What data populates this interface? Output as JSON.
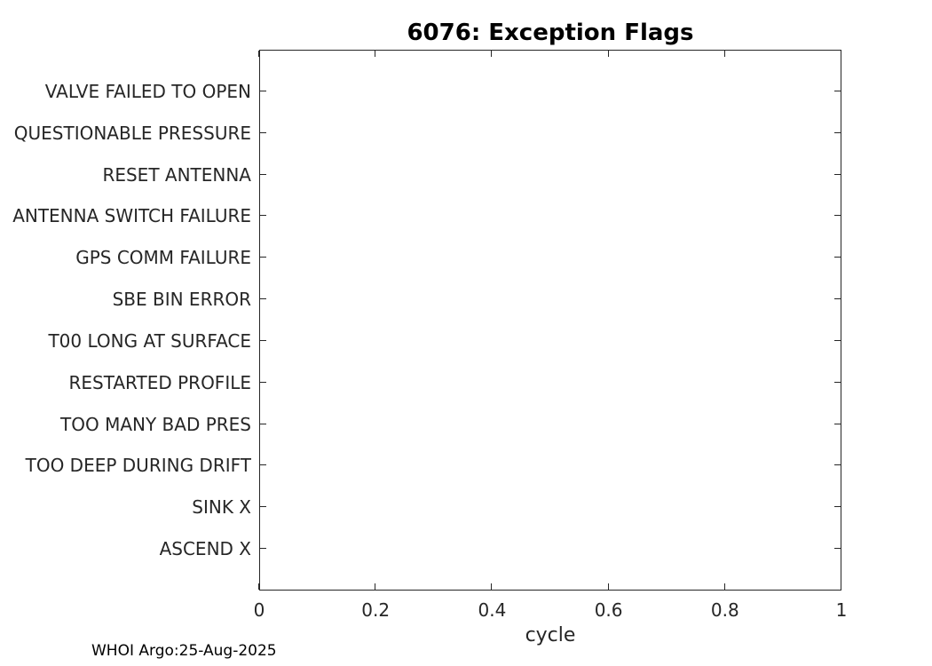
{
  "footer": {
    "credit": "WHOI Argo:25-Aug-2025"
  },
  "chart_data": {
    "type": "scatter",
    "title": "6076: Exception Flags",
    "xlabel": "cycle",
    "ylabel": "",
    "xlim": [
      0,
      1
    ],
    "x_ticks": [
      0,
      0.2,
      0.4,
      0.6,
      0.8,
      1
    ],
    "x_tick_labels": [
      "0",
      "0.2",
      "0.4",
      "0.6",
      "0.8",
      "1"
    ],
    "categories": [
      "VALVE FAILED TO OPEN",
      "QUESTIONABLE PRESSURE",
      "RESET ANTENNA",
      "ANTENNA SWITCH FAILURE",
      "GPS COMM FAILURE",
      "SBE BIN ERROR",
      "T00 LONG AT SURFACE",
      "RESTARTED PROFILE",
      "TOO MANY BAD PRES",
      "TOO DEEP DURING DRIFT",
      "SINK X",
      "ASCEND X"
    ],
    "series": [],
    "grid": false,
    "legend": false,
    "box": true
  }
}
